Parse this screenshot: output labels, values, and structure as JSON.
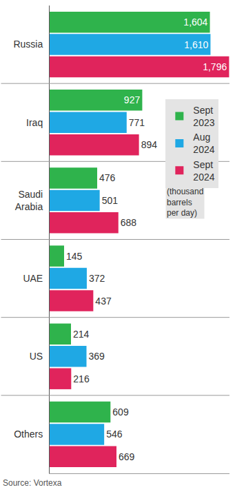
{
  "chart_data": {
    "type": "bar",
    "orientation": "horizontal",
    "categories": [
      "Russia",
      "Iraq",
      "Saudi Arabia",
      "UAE",
      "US",
      "Others"
    ],
    "series": [
      {
        "name": "Sept 2023",
        "color": "#2fb34c",
        "values": [
          1604,
          927,
          476,
          145,
          214,
          609
        ],
        "value_labels": [
          "1,604",
          "927",
          "476",
          "145",
          "214",
          "609"
        ]
      },
      {
        "name": "Aug 2024",
        "color": "#1fa8e4",
        "values": [
          1610,
          771,
          501,
          372,
          369,
          546
        ],
        "value_labels": [
          "1,610",
          "771",
          "501",
          "372",
          "369",
          "546"
        ]
      },
      {
        "name": "Sept 2024",
        "color": "#e0245c",
        "values": [
          1796,
          894,
          688,
          437,
          216,
          669
        ],
        "value_labels": [
          "1,796",
          "894",
          "688",
          "437",
          "216",
          "669"
        ]
      }
    ],
    "unit": "(thousand barrels per day)",
    "source": "Source: Vortexa",
    "xlim": [
      0,
      1800
    ],
    "xticks": [],
    "tick_labels": "y",
    "grid": false,
    "data_labels": true,
    "legend": "right"
  }
}
